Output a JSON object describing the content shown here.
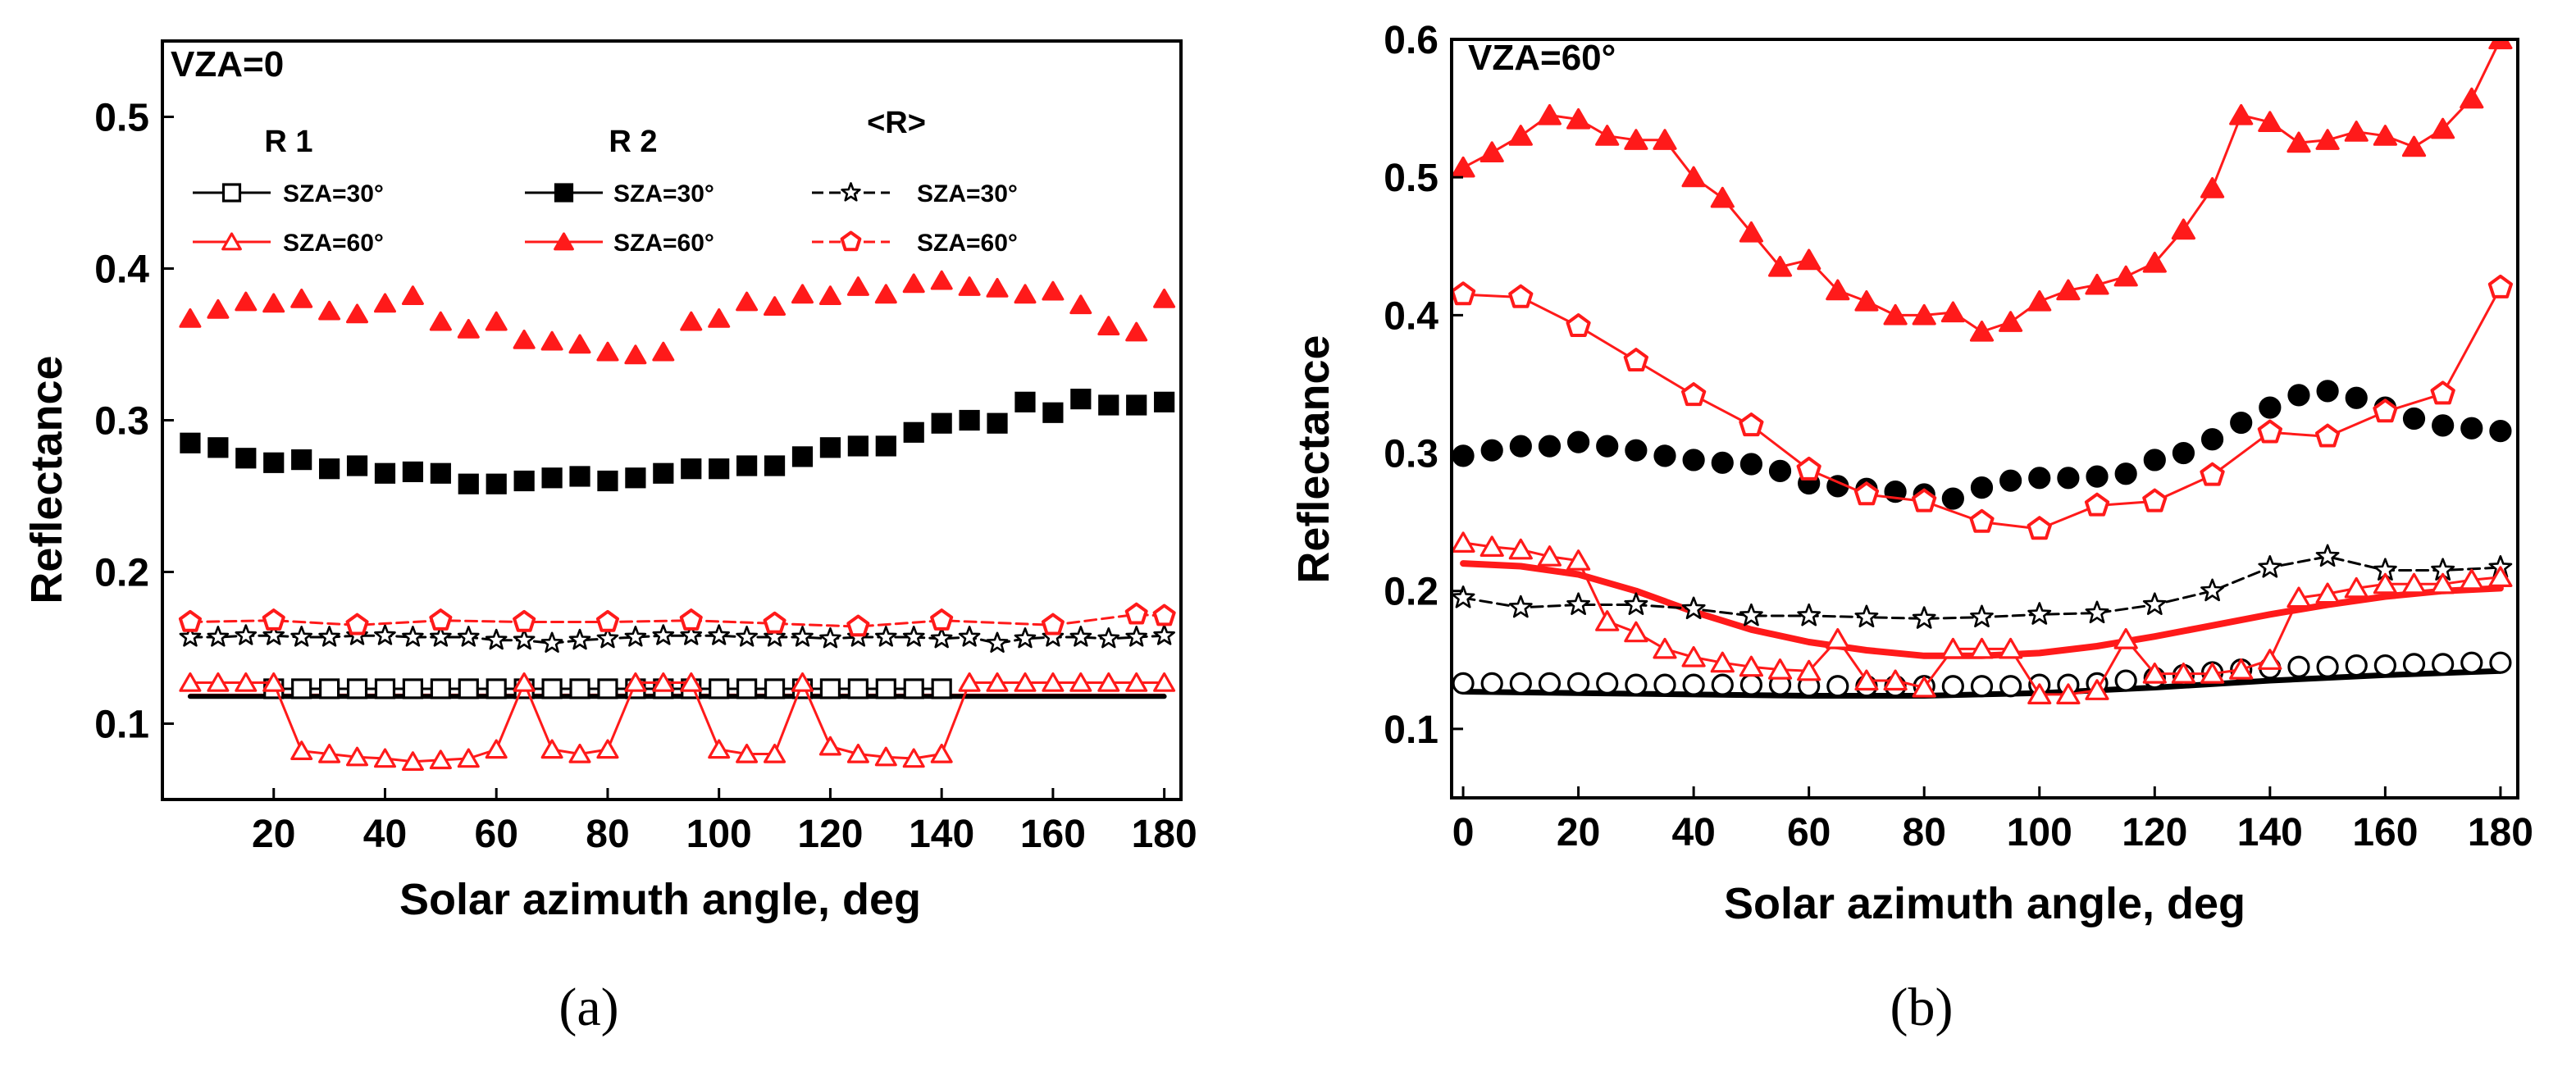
{
  "colors": {
    "red": "#ff1a1a",
    "black": "#000000"
  },
  "chart_data": [
    {
      "id": "a",
      "type": "scatter",
      "caption": "(a)",
      "annotation": "VZA=0",
      "xlabel": "Solar azimuth angle, deg",
      "ylabel": "Reflectance",
      "xlim": [
        0,
        183
      ],
      "ylim": [
        0.05,
        0.55
      ],
      "xticks": [
        20,
        40,
        60,
        80,
        100,
        120,
        140,
        160,
        180
      ],
      "xtick_labels": [
        "20",
        "40",
        "60",
        "80",
        "100",
        "120",
        "140",
        "160",
        "180"
      ],
      "yticks": [
        0.1,
        0.2,
        0.3,
        0.4,
        0.5
      ],
      "ytick_labels": [
        "0.1",
        "0.2",
        "0.3",
        "0.4",
        "0.5"
      ],
      "legend_headers": [
        "R 1",
        "R 2",
        "<R>"
      ],
      "series": [
        {
          "name": "R1 SZA=60° fit",
          "legend": false,
          "color": "red",
          "marker": "none",
          "line": "solid",
          "width": 3,
          "x": [
            5,
            180
          ],
          "y": [
            0.119,
            0.119
          ]
        },
        {
          "name": "R1 SZA=30° fit",
          "legend": false,
          "color": "black",
          "marker": "none",
          "line": "solid",
          "width": 6,
          "x": [
            5,
            180
          ],
          "y": [
            0.118,
            0.118
          ]
        },
        {
          "name": "R 1",
          "legend": "SZA=30°",
          "group": 0,
          "color": "black",
          "marker": "square-open",
          "line": "solid",
          "width": 3,
          "x": [
            20,
            25,
            30,
            35,
            40,
            45,
            50,
            55,
            60,
            65,
            70,
            75,
            80,
            85,
            90,
            95,
            100,
            105,
            110,
            115,
            120,
            125,
            130,
            135,
            140
          ],
          "y": [
            0.123,
            0.123,
            0.123,
            0.123,
            0.123,
            0.123,
            0.123,
            0.123,
            0.123,
            0.123,
            0.123,
            0.123,
            0.123,
            0.123,
            0.123,
            0.123,
            0.123,
            0.123,
            0.123,
            0.123,
            0.123,
            0.123,
            0.123,
            0.123,
            0.123
          ]
        },
        {
          "name": "R 1",
          "legend": "SZA=60°",
          "group": 0,
          "color": "red",
          "marker": "triangle-open",
          "line": "solid",
          "width": 3,
          "x": [
            5,
            10,
            15,
            20,
            25,
            30,
            35,
            40,
            45,
            50,
            55,
            60,
            65,
            70,
            75,
            80,
            85,
            90,
            95,
            100,
            105,
            110,
            115,
            120,
            125,
            130,
            135,
            140,
            145,
            150,
            155,
            160,
            165,
            170,
            175,
            180
          ],
          "y": [
            0.127,
            0.127,
            0.127,
            0.127,
            0.082,
            0.08,
            0.078,
            0.077,
            0.075,
            0.076,
            0.077,
            0.083,
            0.127,
            0.083,
            0.08,
            0.083,
            0.127,
            0.127,
            0.127,
            0.083,
            0.08,
            0.08,
            0.127,
            0.085,
            0.08,
            0.078,
            0.077,
            0.08,
            0.127,
            0.127,
            0.127,
            0.127,
            0.127,
            0.127,
            0.127,
            0.127
          ]
        },
        {
          "name": "R 2",
          "legend": "SZA=30°",
          "group": 1,
          "color": "black",
          "marker": "square-filled",
          "line": "none",
          "width": 3,
          "x": [
            5,
            10,
            15,
            20,
            25,
            30,
            35,
            40,
            45,
            50,
            55,
            60,
            65,
            70,
            75,
            80,
            85,
            90,
            95,
            100,
            105,
            110,
            115,
            120,
            125,
            130,
            135,
            140,
            145,
            150,
            155,
            160,
            165,
            170,
            175,
            180
          ],
          "y": [
            0.285,
            0.282,
            0.275,
            0.272,
            0.274,
            0.268,
            0.27,
            0.265,
            0.266,
            0.265,
            0.258,
            0.258,
            0.26,
            0.262,
            0.263,
            0.26,
            0.262,
            0.265,
            0.268,
            0.268,
            0.27,
            0.27,
            0.276,
            0.282,
            0.283,
            0.283,
            0.292,
            0.298,
            0.3,
            0.298,
            0.312,
            0.305,
            0.314,
            0.31,
            0.31,
            0.312
          ]
        },
        {
          "name": "R 2",
          "legend": "SZA=60°",
          "group": 1,
          "color": "red",
          "marker": "triangle-filled",
          "line": "none",
          "width": 3,
          "x": [
            5,
            10,
            15,
            20,
            25,
            30,
            35,
            40,
            45,
            50,
            55,
            60,
            65,
            70,
            75,
            80,
            85,
            90,
            95,
            100,
            105,
            110,
            115,
            120,
            125,
            130,
            135,
            140,
            145,
            150,
            155,
            160,
            165,
            170,
            175,
            180
          ],
          "y": [
            0.367,
            0.373,
            0.378,
            0.377,
            0.38,
            0.372,
            0.37,
            0.377,
            0.382,
            0.365,
            0.36,
            0.365,
            0.353,
            0.352,
            0.35,
            0.345,
            0.343,
            0.345,
            0.365,
            0.367,
            0.378,
            0.375,
            0.383,
            0.382,
            0.388,
            0.383,
            0.39,
            0.392,
            0.388,
            0.387,
            0.383,
            0.385,
            0.376,
            0.362,
            0.358,
            0.38
          ]
        },
        {
          "name": "<R>",
          "legend": "SZA=30°",
          "group": 2,
          "color": "black",
          "marker": "star-open",
          "line": "dashed",
          "width": 3,
          "x": [
            5,
            10,
            15,
            20,
            25,
            30,
            35,
            40,
            45,
            50,
            55,
            60,
            65,
            70,
            75,
            80,
            85,
            90,
            95,
            100,
            105,
            110,
            115,
            120,
            125,
            130,
            135,
            140,
            145,
            150,
            155,
            160,
            165,
            170,
            175,
            180
          ],
          "y": [
            0.157,
            0.157,
            0.158,
            0.158,
            0.157,
            0.157,
            0.158,
            0.158,
            0.157,
            0.157,
            0.157,
            0.155,
            0.155,
            0.153,
            0.155,
            0.156,
            0.157,
            0.158,
            0.158,
            0.158,
            0.157,
            0.157,
            0.157,
            0.156,
            0.157,
            0.157,
            0.157,
            0.156,
            0.157,
            0.153,
            0.156,
            0.157,
            0.157,
            0.156,
            0.157,
            0.158
          ]
        },
        {
          "name": "<R>",
          "legend": "SZA=60°",
          "group": 2,
          "color": "red",
          "marker": "pentagon-open",
          "line": "dashed",
          "width": 3,
          "x": [
            5,
            20,
            35,
            50,
            65,
            80,
            95,
            110,
            125,
            140,
            160,
            175,
            180
          ],
          "y": [
            0.167,
            0.168,
            0.165,
            0.168,
            0.167,
            0.167,
            0.168,
            0.166,
            0.164,
            0.168,
            0.165,
            0.172,
            0.171
          ]
        }
      ]
    },
    {
      "id": "b",
      "type": "scatter",
      "caption": "(b)",
      "annotation": "VZA=60°",
      "xlabel": "Solar azimuth angle, deg",
      "ylabel": "Reflectance",
      "xlim": [
        -2,
        183
      ],
      "ylim": [
        0.05,
        0.6
      ],
      "xticks": [
        0,
        20,
        40,
        60,
        80,
        100,
        120,
        140,
        160,
        180
      ],
      "xtick_labels": [
        "0",
        "20",
        "40",
        "60",
        "80",
        "100",
        "120",
        "140",
        "160",
        "180"
      ],
      "yticks": [
        0.1,
        0.2,
        0.3,
        0.4,
        0.5,
        0.6
      ],
      "ytick_labels": [
        "0.1",
        "0.2",
        "0.3",
        "0.4",
        "0.5",
        "0.6"
      ],
      "series": [
        {
          "name": "SZA=30° smooth",
          "color": "black",
          "marker": "none",
          "line": "solid",
          "width": 7,
          "x": [
            0,
            20,
            40,
            60,
            80,
            100,
            120,
            140,
            160,
            180
          ],
          "y": [
            0.127,
            0.126,
            0.125,
            0.124,
            0.124,
            0.126,
            0.13,
            0.135,
            0.139,
            0.142
          ]
        },
        {
          "name": "SZA=30° circles",
          "color": "black",
          "marker": "circle-open",
          "x": [
            0,
            5,
            10,
            15,
            20,
            25,
            30,
            35,
            40,
            45,
            50,
            55,
            60,
            65,
            70,
            75,
            80,
            85,
            90,
            95,
            100,
            105,
            110,
            115,
            120,
            125,
            130,
            135,
            140,
            145,
            150,
            155,
            160,
            165,
            170,
            175,
            180
          ],
          "y": [
            0.133,
            0.133,
            0.133,
            0.133,
            0.133,
            0.133,
            0.132,
            0.132,
            0.132,
            0.132,
            0.132,
            0.132,
            0.131,
            0.131,
            0.131,
            0.131,
            0.131,
            0.131,
            0.131,
            0.131,
            0.132,
            0.132,
            0.133,
            0.135,
            0.137,
            0.139,
            0.141,
            0.143,
            0.144,
            0.145,
            0.145,
            0.146,
            0.146,
            0.147,
            0.147,
            0.148,
            0.148
          ]
        },
        {
          "name": "SZA=30° filled circles",
          "color": "black",
          "marker": "circle-filled",
          "x": [
            0,
            5,
            10,
            15,
            20,
            25,
            30,
            35,
            40,
            45,
            50,
            55,
            60,
            65,
            70,
            75,
            80,
            85,
            90,
            95,
            100,
            105,
            110,
            115,
            120,
            125,
            130,
            135,
            140,
            145,
            150,
            155,
            160,
            165,
            170,
            175,
            180
          ],
          "y": [
            0.298,
            0.302,
            0.305,
            0.305,
            0.308,
            0.305,
            0.302,
            0.298,
            0.295,
            0.293,
            0.292,
            0.287,
            0.278,
            0.276,
            0.274,
            0.272,
            0.27,
            0.267,
            0.275,
            0.28,
            0.282,
            0.282,
            0.283,
            0.285,
            0.295,
            0.3,
            0.31,
            0.322,
            0.333,
            0.342,
            0.345,
            0.34,
            0.333,
            0.325,
            0.32,
            0.318,
            0.316
          ]
        },
        {
          "name": "SZA=60° smooth",
          "color": "red",
          "marker": "none",
          "line": "solid",
          "width": 8,
          "x": [
            0,
            10,
            20,
            30,
            40,
            50,
            60,
            70,
            80,
            90,
            100,
            110,
            120,
            130,
            140,
            150,
            160,
            170,
            180
          ],
          "y": [
            0.22,
            0.218,
            0.212,
            0.2,
            0.185,
            0.172,
            0.163,
            0.157,
            0.153,
            0.153,
            0.155,
            0.16,
            0.167,
            0.175,
            0.183,
            0.19,
            0.196,
            0.2,
            0.202
          ]
        },
        {
          "name": "SZA=30° stars",
          "color": "black",
          "marker": "star-open",
          "line": "dashed",
          "width": 3,
          "x": [
            0,
            10,
            20,
            30,
            40,
            50,
            60,
            70,
            80,
            90,
            100,
            110,
            120,
            130,
            140,
            150,
            160,
            170,
            180
          ],
          "y": [
            0.195,
            0.188,
            0.19,
            0.19,
            0.187,
            0.182,
            0.182,
            0.181,
            0.18,
            0.181,
            0.183,
            0.184,
            0.19,
            0.2,
            0.217,
            0.225,
            0.215,
            0.215,
            0.217
          ]
        },
        {
          "name": "SZA=60° open triangles",
          "color": "red",
          "marker": "triangle-open",
          "line": "solid",
          "width": 3,
          "x": [
            0,
            5,
            10,
            15,
            20,
            25,
            30,
            35,
            40,
            45,
            50,
            55,
            60,
            65,
            70,
            75,
            80,
            85,
            90,
            95,
            100,
            105,
            110,
            115,
            120,
            125,
            130,
            135,
            140,
            145,
            150,
            155,
            160,
            165,
            170,
            175,
            180
          ],
          "y": [
            0.235,
            0.232,
            0.23,
            0.225,
            0.222,
            0.178,
            0.17,
            0.158,
            0.152,
            0.148,
            0.145,
            0.143,
            0.142,
            0.165,
            0.135,
            0.135,
            0.13,
            0.158,
            0.158,
            0.158,
            0.125,
            0.125,
            0.128,
            0.165,
            0.14,
            0.14,
            0.14,
            0.143,
            0.15,
            0.195,
            0.198,
            0.202,
            0.205,
            0.205,
            0.205,
            0.208,
            0.21
          ]
        },
        {
          "name": "SZA=60° pentagons",
          "color": "red",
          "marker": "pentagon-open",
          "line": "solid",
          "width": 3,
          "x": [
            0,
            10,
            20,
            30,
            40,
            50,
            60,
            70,
            80,
            90,
            100,
            110,
            120,
            130,
            140,
            150,
            160,
            170,
            180
          ],
          "y": [
            0.415,
            0.413,
            0.392,
            0.367,
            0.342,
            0.32,
            0.288,
            0.27,
            0.265,
            0.25,
            0.245,
            0.262,
            0.265,
            0.284,
            0.315,
            0.312,
            0.33,
            0.343,
            0.42
          ]
        },
        {
          "name": "SZA=60° filled triangles",
          "color": "red",
          "marker": "triangle-filled",
          "line": "solid",
          "width": 3,
          "x": [
            0,
            5,
            10,
            15,
            20,
            25,
            30,
            35,
            40,
            45,
            50,
            55,
            60,
            65,
            70,
            75,
            80,
            85,
            90,
            95,
            100,
            105,
            110,
            115,
            120,
            125,
            130,
            135,
            140,
            145,
            150,
            155,
            160,
            165,
            170,
            175,
            180
          ],
          "y": [
            0.507,
            0.518,
            0.53,
            0.545,
            0.542,
            0.53,
            0.527,
            0.527,
            0.5,
            0.485,
            0.46,
            0.435,
            0.44,
            0.418,
            0.41,
            0.4,
            0.4,
            0.402,
            0.388,
            0.395,
            0.41,
            0.418,
            0.422,
            0.428,
            0.438,
            0.462,
            0.492,
            0.545,
            0.54,
            0.525,
            0.527,
            0.533,
            0.53,
            0.522,
            0.535,
            0.557,
            0.6
          ]
        }
      ]
    }
  ]
}
